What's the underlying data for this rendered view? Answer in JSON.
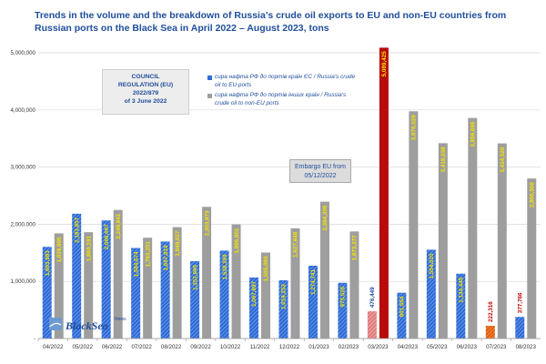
{
  "chart_data": {
    "type": "bar",
    "title": "Trends in the volume and the breakdown of Russia’s crude oil exports to EU and non-EU countries from Russian ports on the Black Sea in April 2022 – August 2023, tons",
    "categories": [
      "04/2022",
      "05/2022",
      "06/2022",
      "07/2022",
      "08/2022",
      "09/2022",
      "10/2022",
      "11/2022",
      "12/2022",
      "01/2023",
      "02/2023",
      "03/2023",
      "04/2023",
      "05/2023",
      "06/2023",
      "07/2023",
      "08/2023"
    ],
    "series": [
      {
        "name": "сира нафта РФ до портів країн ЄС / Russia's crude oil to EU ports",
        "values": [
          1603983,
          2183857,
          2066667,
          1584674,
          1697819,
          1352995,
          1538399,
          1067897,
          1019252,
          1274741,
          975526,
          476449,
          801554,
          1554020,
          1134445,
          222316,
          377766
        ],
        "labels": [
          "1,603,983",
          "2,183,857",
          "2,066,667",
          "1,584,674",
          "1,697,819",
          "1,352,995",
          "1,538,399",
          "1,067,897",
          "1,019,252",
          "1,274,741",
          "975,526",
          "476,449",
          "801,554",
          "1,554,020",
          "1,134,445",
          "222,316",
          "377,766"
        ]
      },
      {
        "name": "сира нафта РФ до портів інших країн / Russia's crude oil to non-EU ports",
        "values": [
          1839906,
          1860191,
          2249841,
          1763251,
          1949027,
          2303973,
          1996901,
          1505060,
          1927948,
          2394306,
          1873377,
          5089425,
          3976529,
          3418038,
          3859686,
          3414520,
          2800506
        ],
        "labels": [
          "1,839,906",
          "1,860,191",
          "2,249,841",
          "1,763,251",
          "1,949,027",
          "2,303,973",
          "1,996,901",
          "1,505,060",
          "1,927,948",
          "2,394,306",
          "1,873,377",
          "5,089,425",
          "3,976,529",
          "3,418,038",
          "3,859,686",
          "3,414,520",
          "2,800,506"
        ]
      }
    ],
    "ylim": [
      0,
      5000000
    ],
    "yticks": [
      "-",
      "1,000,000",
      "2,000,000",
      "3,000,000",
      "4,000,000",
      "5,000,000"
    ],
    "grid": true,
    "legend_position": "top-center",
    "highlight_category": "03/2023"
  },
  "colors": {
    "eu_bar": "#2e6bd6",
    "non_eu_bar": "#9e9e9e",
    "highlight_eu": "#e27c7c",
    "highlight_non_eu": "#b80b0b",
    "label_text": "#f5e400",
    "label_outline_text": "#1f4e9c",
    "highlight_label": "#c00000",
    "title_color": "#1f4e9c"
  },
  "annotations": {
    "council": [
      "COUNCIL",
      "REGULATION (EU)",
      "2022/879",
      "of 3 June 2022"
    ],
    "embargo": [
      "Embargo EU from",
      "05/12/2022"
    ]
  },
  "legend": {
    "eu": [
      "сира нафта РФ до портів країн ЄС / Russia's crude",
      "oil to EU ports"
    ],
    "non_eu": [
      "сира нафта РФ до портів інших країн / Russia's",
      "crude oil to non-EU ports"
    ]
  },
  "logo": {
    "name": "BlackSea",
    "news": "News",
    "icon": "blacksea-logo-icon"
  }
}
